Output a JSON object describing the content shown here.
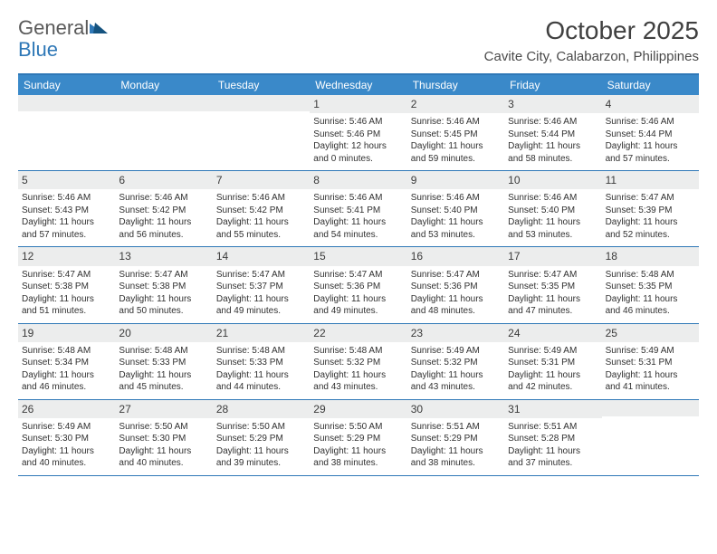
{
  "logo": {
    "word1": "General",
    "word2": "Blue"
  },
  "title": "October 2025",
  "location": "Cavite City, Calabarzon, Philippines",
  "colors": {
    "header_bg": "#3a89c9",
    "header_border": "#2f78b7",
    "daynum_bg": "#eceded",
    "text": "#303030",
    "logo_gray": "#5a5a5a",
    "logo_blue": "#2f78b7"
  },
  "weekdays": [
    "Sunday",
    "Monday",
    "Tuesday",
    "Wednesday",
    "Thursday",
    "Friday",
    "Saturday"
  ],
  "weeks": [
    [
      {
        "n": "",
        "sr": "",
        "ss": "",
        "d1": "",
        "d2": ""
      },
      {
        "n": "",
        "sr": "",
        "ss": "",
        "d1": "",
        "d2": ""
      },
      {
        "n": "",
        "sr": "",
        "ss": "",
        "d1": "",
        "d2": ""
      },
      {
        "n": "1",
        "sr": "Sunrise: 5:46 AM",
        "ss": "Sunset: 5:46 PM",
        "d1": "Daylight: 12 hours",
        "d2": "and 0 minutes."
      },
      {
        "n": "2",
        "sr": "Sunrise: 5:46 AM",
        "ss": "Sunset: 5:45 PM",
        "d1": "Daylight: 11 hours",
        "d2": "and 59 minutes."
      },
      {
        "n": "3",
        "sr": "Sunrise: 5:46 AM",
        "ss": "Sunset: 5:44 PM",
        "d1": "Daylight: 11 hours",
        "d2": "and 58 minutes."
      },
      {
        "n": "4",
        "sr": "Sunrise: 5:46 AM",
        "ss": "Sunset: 5:44 PM",
        "d1": "Daylight: 11 hours",
        "d2": "and 57 minutes."
      }
    ],
    [
      {
        "n": "5",
        "sr": "Sunrise: 5:46 AM",
        "ss": "Sunset: 5:43 PM",
        "d1": "Daylight: 11 hours",
        "d2": "and 57 minutes."
      },
      {
        "n": "6",
        "sr": "Sunrise: 5:46 AM",
        "ss": "Sunset: 5:42 PM",
        "d1": "Daylight: 11 hours",
        "d2": "and 56 minutes."
      },
      {
        "n": "7",
        "sr": "Sunrise: 5:46 AM",
        "ss": "Sunset: 5:42 PM",
        "d1": "Daylight: 11 hours",
        "d2": "and 55 minutes."
      },
      {
        "n": "8",
        "sr": "Sunrise: 5:46 AM",
        "ss": "Sunset: 5:41 PM",
        "d1": "Daylight: 11 hours",
        "d2": "and 54 minutes."
      },
      {
        "n": "9",
        "sr": "Sunrise: 5:46 AM",
        "ss": "Sunset: 5:40 PM",
        "d1": "Daylight: 11 hours",
        "d2": "and 53 minutes."
      },
      {
        "n": "10",
        "sr": "Sunrise: 5:46 AM",
        "ss": "Sunset: 5:40 PM",
        "d1": "Daylight: 11 hours",
        "d2": "and 53 minutes."
      },
      {
        "n": "11",
        "sr": "Sunrise: 5:47 AM",
        "ss": "Sunset: 5:39 PM",
        "d1": "Daylight: 11 hours",
        "d2": "and 52 minutes."
      }
    ],
    [
      {
        "n": "12",
        "sr": "Sunrise: 5:47 AM",
        "ss": "Sunset: 5:38 PM",
        "d1": "Daylight: 11 hours",
        "d2": "and 51 minutes."
      },
      {
        "n": "13",
        "sr": "Sunrise: 5:47 AM",
        "ss": "Sunset: 5:38 PM",
        "d1": "Daylight: 11 hours",
        "d2": "and 50 minutes."
      },
      {
        "n": "14",
        "sr": "Sunrise: 5:47 AM",
        "ss": "Sunset: 5:37 PM",
        "d1": "Daylight: 11 hours",
        "d2": "and 49 minutes."
      },
      {
        "n": "15",
        "sr": "Sunrise: 5:47 AM",
        "ss": "Sunset: 5:36 PM",
        "d1": "Daylight: 11 hours",
        "d2": "and 49 minutes."
      },
      {
        "n": "16",
        "sr": "Sunrise: 5:47 AM",
        "ss": "Sunset: 5:36 PM",
        "d1": "Daylight: 11 hours",
        "d2": "and 48 minutes."
      },
      {
        "n": "17",
        "sr": "Sunrise: 5:47 AM",
        "ss": "Sunset: 5:35 PM",
        "d1": "Daylight: 11 hours",
        "d2": "and 47 minutes."
      },
      {
        "n": "18",
        "sr": "Sunrise: 5:48 AM",
        "ss": "Sunset: 5:35 PM",
        "d1": "Daylight: 11 hours",
        "d2": "and 46 minutes."
      }
    ],
    [
      {
        "n": "19",
        "sr": "Sunrise: 5:48 AM",
        "ss": "Sunset: 5:34 PM",
        "d1": "Daylight: 11 hours",
        "d2": "and 46 minutes."
      },
      {
        "n": "20",
        "sr": "Sunrise: 5:48 AM",
        "ss": "Sunset: 5:33 PM",
        "d1": "Daylight: 11 hours",
        "d2": "and 45 minutes."
      },
      {
        "n": "21",
        "sr": "Sunrise: 5:48 AM",
        "ss": "Sunset: 5:33 PM",
        "d1": "Daylight: 11 hours",
        "d2": "and 44 minutes."
      },
      {
        "n": "22",
        "sr": "Sunrise: 5:48 AM",
        "ss": "Sunset: 5:32 PM",
        "d1": "Daylight: 11 hours",
        "d2": "and 43 minutes."
      },
      {
        "n": "23",
        "sr": "Sunrise: 5:49 AM",
        "ss": "Sunset: 5:32 PM",
        "d1": "Daylight: 11 hours",
        "d2": "and 43 minutes."
      },
      {
        "n": "24",
        "sr": "Sunrise: 5:49 AM",
        "ss": "Sunset: 5:31 PM",
        "d1": "Daylight: 11 hours",
        "d2": "and 42 minutes."
      },
      {
        "n": "25",
        "sr": "Sunrise: 5:49 AM",
        "ss": "Sunset: 5:31 PM",
        "d1": "Daylight: 11 hours",
        "d2": "and 41 minutes."
      }
    ],
    [
      {
        "n": "26",
        "sr": "Sunrise: 5:49 AM",
        "ss": "Sunset: 5:30 PM",
        "d1": "Daylight: 11 hours",
        "d2": "and 40 minutes."
      },
      {
        "n": "27",
        "sr": "Sunrise: 5:50 AM",
        "ss": "Sunset: 5:30 PM",
        "d1": "Daylight: 11 hours",
        "d2": "and 40 minutes."
      },
      {
        "n": "28",
        "sr": "Sunrise: 5:50 AM",
        "ss": "Sunset: 5:29 PM",
        "d1": "Daylight: 11 hours",
        "d2": "and 39 minutes."
      },
      {
        "n": "29",
        "sr": "Sunrise: 5:50 AM",
        "ss": "Sunset: 5:29 PM",
        "d1": "Daylight: 11 hours",
        "d2": "and 38 minutes."
      },
      {
        "n": "30",
        "sr": "Sunrise: 5:51 AM",
        "ss": "Sunset: 5:29 PM",
        "d1": "Daylight: 11 hours",
        "d2": "and 38 minutes."
      },
      {
        "n": "31",
        "sr": "Sunrise: 5:51 AM",
        "ss": "Sunset: 5:28 PM",
        "d1": "Daylight: 11 hours",
        "d2": "and 37 minutes."
      },
      {
        "n": "",
        "sr": "",
        "ss": "",
        "d1": "",
        "d2": ""
      }
    ]
  ]
}
